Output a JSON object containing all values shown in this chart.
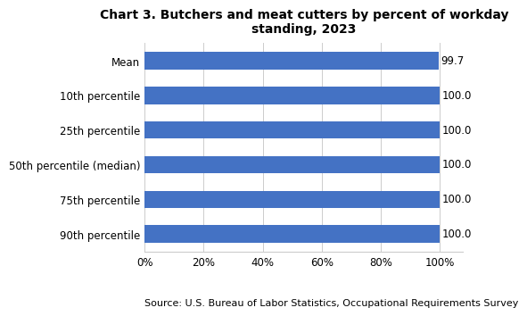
{
  "title": "Chart 3. Butchers and meat cutters by percent of workday\nstanding, 2023",
  "categories": [
    "Mean",
    "10th percentile",
    "25th percentile",
    "50th percentile (median)",
    "75th percentile",
    "90th percentile"
  ],
  "values": [
    99.7,
    100.0,
    100.0,
    100.0,
    100.0,
    100.0
  ],
  "labels": [
    "99.7",
    "100.0",
    "100.0",
    "100.0",
    "100.0",
    "100.0"
  ],
  "bar_color": "#4472C4",
  "xlim": [
    0,
    108
  ],
  "xticks": [
    0,
    20,
    40,
    60,
    80,
    100
  ],
  "xticklabels": [
    "0%",
    "20%",
    "40%",
    "60%",
    "80%",
    "100%"
  ],
  "source": "Source: U.S. Bureau of Labor Statistics, Occupational Requirements Survey",
  "title_fontsize": 10,
  "tick_fontsize": 8.5,
  "source_fontsize": 8,
  "label_fontsize": 8.5,
  "background_color": "#ffffff",
  "grid_color": "#cccccc"
}
